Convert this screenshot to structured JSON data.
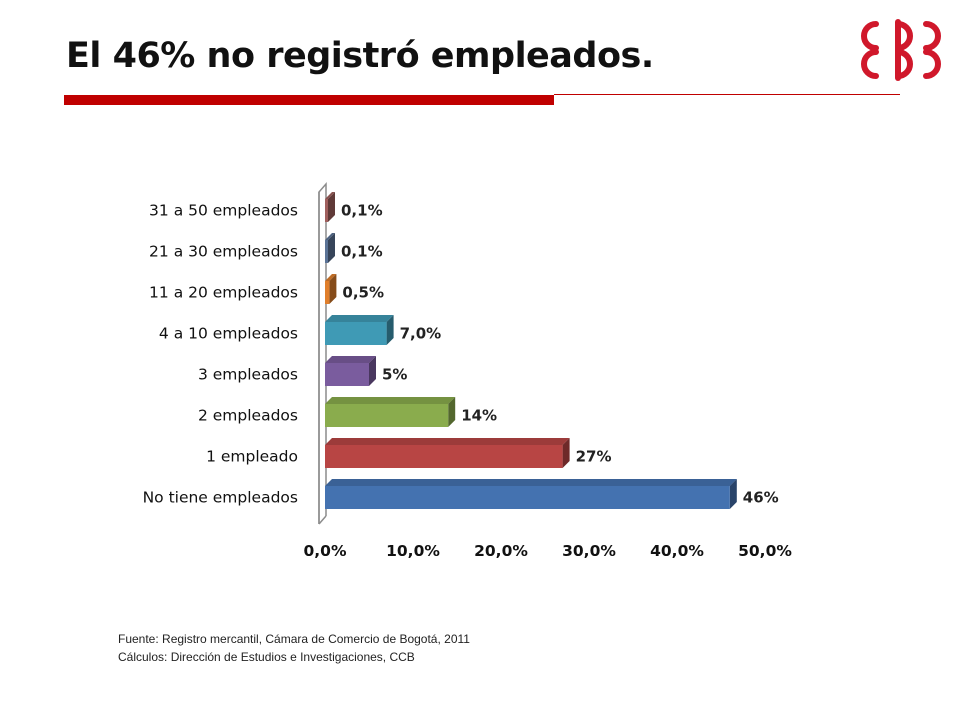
{
  "slide": {
    "title": "El 46% no registró empleados."
  },
  "logo": {
    "name": "ccb-logo",
    "color": "#d0182b"
  },
  "source": {
    "line1": "Fuente: Registro mercantil, Cámara  de Comercio de Bogotá, 2011",
    "line2": "Cálculos: Dirección de Estudios e Investigaciones, CCB"
  },
  "chart_data": {
    "type": "bar",
    "orientation": "horizontal",
    "style": "3d",
    "categories": [
      "31 a 50 empleados",
      "21 a 30 empleados",
      "11 a 20 empleados",
      "4 a 10 empleados",
      "3 empleados",
      "2 empleados",
      "1 empleado",
      "No tiene empleados"
    ],
    "values": [
      0.1,
      0.1,
      0.5,
      7.0,
      5,
      14,
      27,
      46
    ],
    "data_labels": [
      "0,1%",
      "0,1%",
      "0,5%",
      "7,0%",
      "5%",
      "14%",
      "27%",
      "46%"
    ],
    "colors": [
      "#a0605e",
      "#5b7396",
      "#e07f2c",
      "#3f9ab5",
      "#7a5c9e",
      "#8aac4d",
      "#b84544",
      "#4472b0"
    ],
    "xlim": [
      0,
      50
    ],
    "x_ticks": [
      "0,0%",
      "10,0%",
      "20,0%",
      "30,0%",
      "40,0%",
      "50,0%"
    ],
    "x_tick_values": [
      0,
      10,
      20,
      30,
      40,
      50
    ],
    "grid": false,
    "legend": "none",
    "title": "",
    "xlabel": "",
    "ylabel": ""
  }
}
